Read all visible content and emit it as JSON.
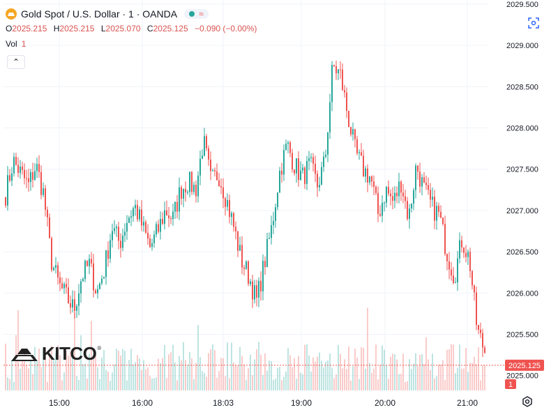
{
  "header": {
    "symbol_title": "Gold Spot / U.S. Dollar · 1 · OANDA",
    "market_dot_color": "#26a69a",
    "wave_icon": "≈",
    "wave_color": "#ef5350",
    "ohlc": {
      "o_label": "O",
      "o_value": "2025.215",
      "h_label": "H",
      "h_value": "2025.215",
      "l_label": "L",
      "l_value": "2025.070",
      "c_label": "C",
      "c_value": "2025.125",
      "change": "−0.090 (−0.00%)"
    },
    "volume": {
      "label": "Vol",
      "value": "1"
    }
  },
  "logo": {
    "name": "KITCO",
    "reg": "®"
  },
  "colors": {
    "up": "#26a69a",
    "down": "#ef5350",
    "grid": "#f0f3fa",
    "price_line": "#ef5350"
  },
  "chart_data": {
    "type": "candlestick",
    "title": "Gold Spot / U.S. Dollar · 1 · OANDA",
    "ylim": [
      2024.82,
      2029.55
    ],
    "y_ticks": [
      "2029.500",
      "2029.000",
      "2028.500",
      "2028.000",
      "2027.500",
      "2027.000",
      "2026.500",
      "2026.000",
      "2025.500",
      "2025.000"
    ],
    "x_ticks": [
      "15:00",
      "16:00",
      "18:03",
      "19:00",
      "20:00",
      "21:00"
    ],
    "last_price": {
      "value": 2025.125,
      "label": "2025.125"
    },
    "volume_badge": "1",
    "close_series": [
      2027.2,
      2027.6,
      2027.45,
      2027.3,
      2027.55,
      2027.2,
      2026.4,
      2026.1,
      2025.95,
      2025.8,
      2026.2,
      2026.35,
      2026.0,
      2026.3,
      2026.8,
      2026.6,
      2026.9,
      2027.05,
      2026.8,
      2026.55,
      2026.75,
      2027.0,
      2026.9,
      2027.25,
      2027.35,
      2027.25,
      2027.85,
      2027.35,
      2027.45,
      2027.15,
      2026.8,
      2026.4,
      2026.2,
      2025.9,
      2026.35,
      2026.8,
      2027.45,
      2027.8,
      2027.55,
      2027.4,
      2027.55,
      2027.3,
      2027.6,
      2028.75,
      2028.65,
      2028.15,
      2027.7,
      2027.5,
      2027.4,
      2026.95,
      2027.25,
      2027.1,
      2027.35,
      2026.9,
      2027.55,
      2027.25,
      2027.05,
      2026.95,
      2026.5,
      2026.2,
      2026.65,
      2026.4,
      2025.55,
      2025.3
    ]
  }
}
